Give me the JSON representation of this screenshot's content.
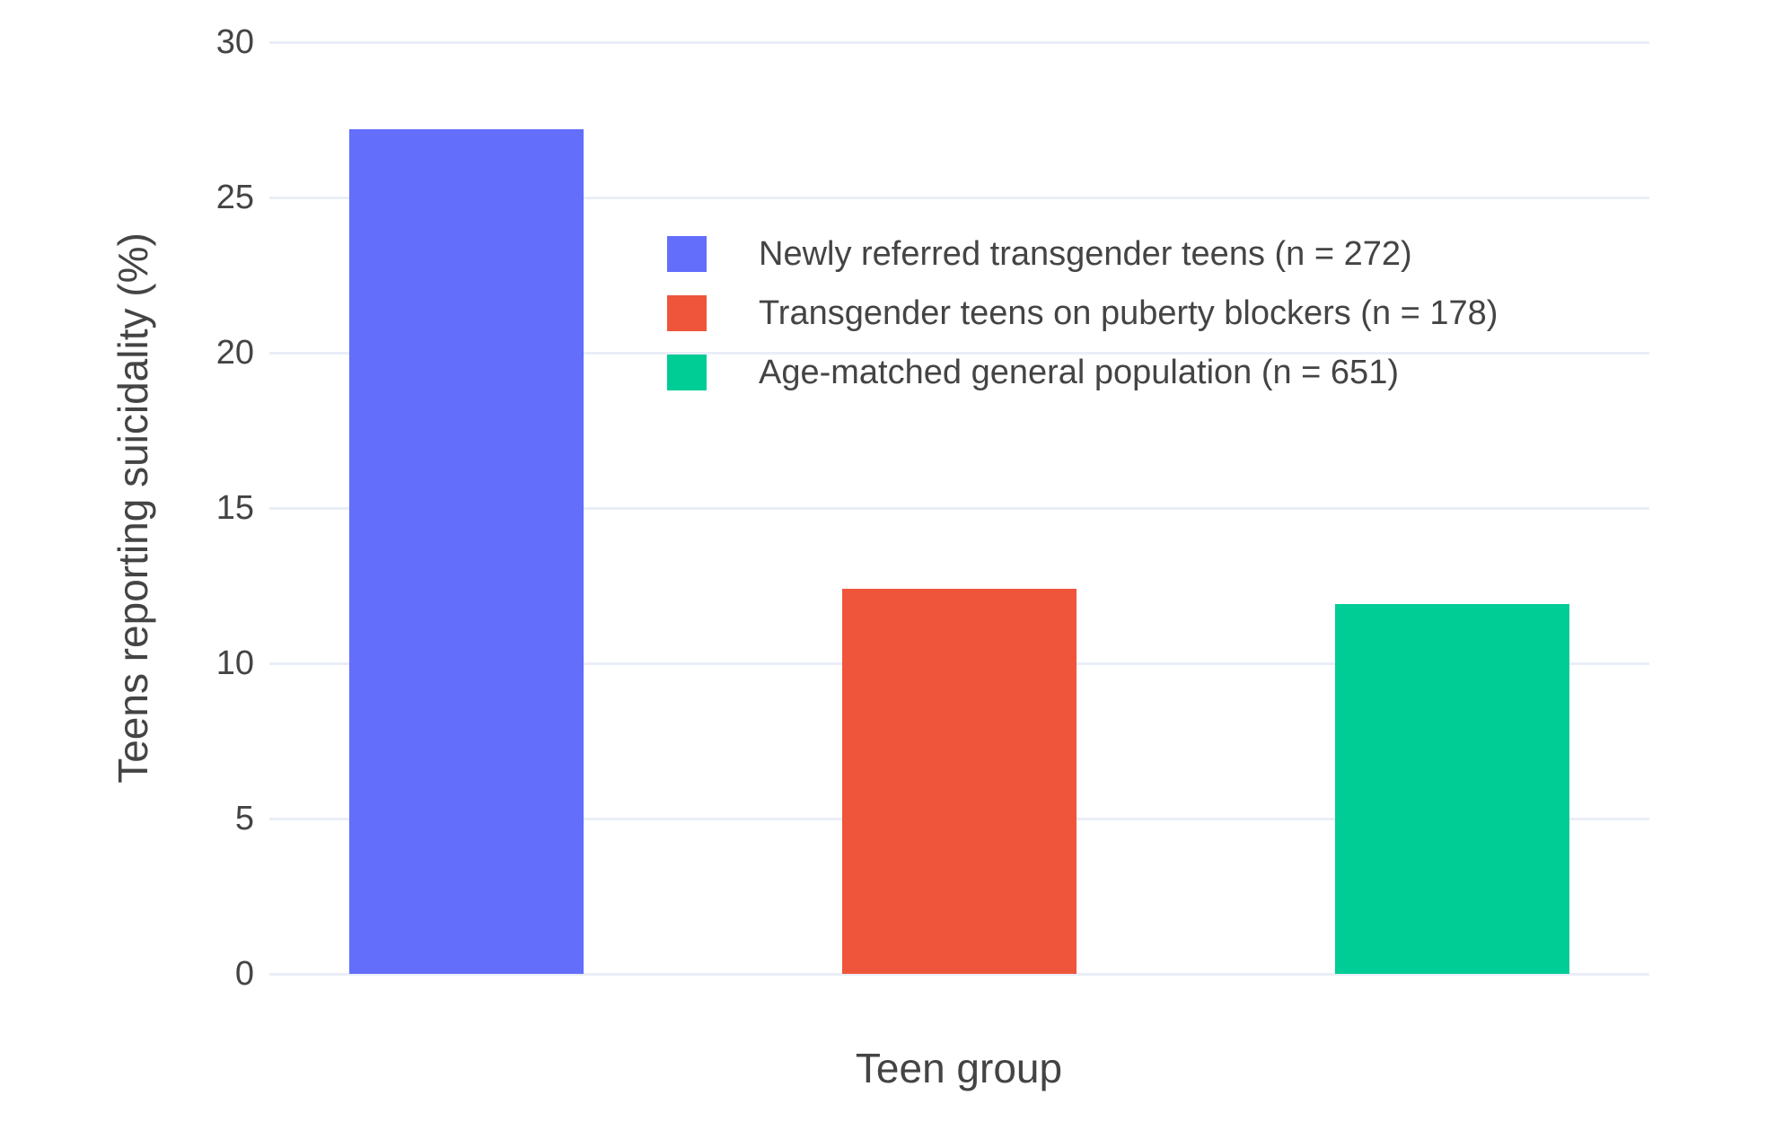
{
  "colors": {
    "background": "#FFFFFF",
    "grid": "#E9EEF7",
    "text": "#444444"
  },
  "chart_data": {
    "type": "bar",
    "title": "",
    "xlabel": "Teen group",
    "ylabel": "Teens reporting suicidality (%)",
    "ylim": [
      0,
      30
    ],
    "yticks": [
      0,
      5,
      10,
      15,
      20,
      25,
      30
    ],
    "grid": true,
    "legend_position": "inside-top-center",
    "x_tick_labels": [],
    "bars": [
      {
        "label": "Newly referred transgender teens (n = 272)",
        "value": 27.2,
        "color": "#636EFA"
      },
      {
        "label": "Transgender teens on puberty blockers (n = 178)",
        "value": 12.4,
        "color": "#EF553B"
      },
      {
        "label": "Age-matched general population (n = 651)",
        "value": 11.9,
        "color": "#00CC96"
      }
    ]
  }
}
